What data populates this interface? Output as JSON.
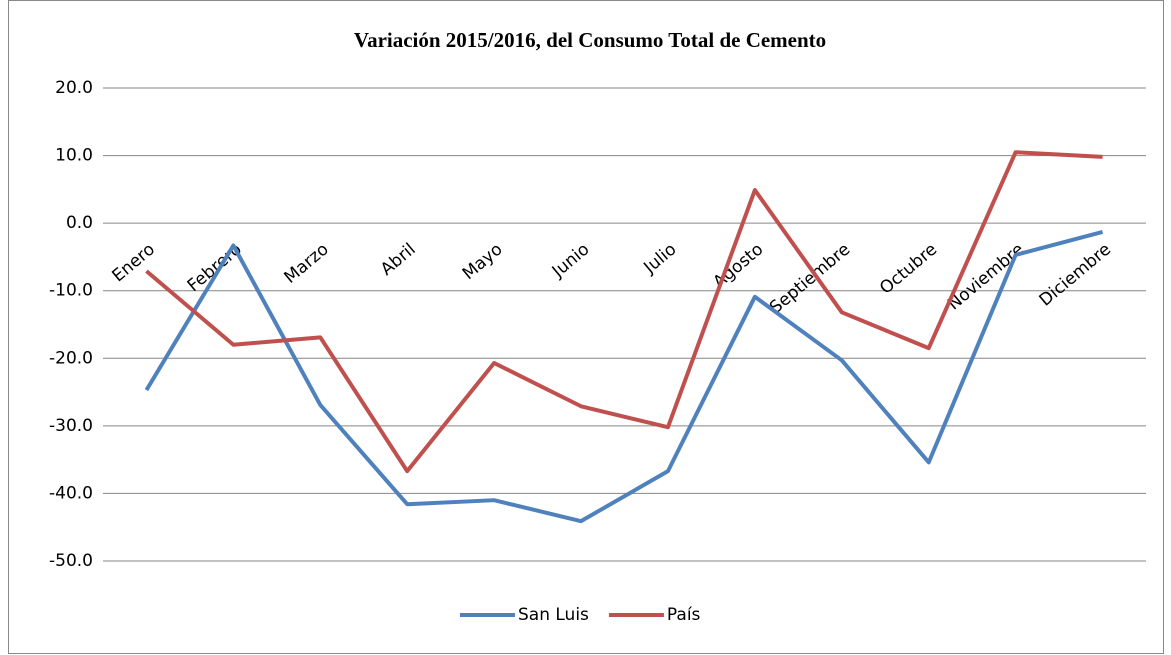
{
  "chart_data": {
    "type": "line",
    "title": "Variación 2015/2016, del Consumo Total de Cemento",
    "categories": [
      "Enero",
      "Febrero",
      "Marzo",
      "Abril",
      "Mayo",
      "Junio",
      "Julio",
      "Agosto",
      "Septiembre",
      "Octubre",
      "Noviembre",
      "Diciembre"
    ],
    "series": [
      {
        "name": "San Luis",
        "color": "#4f81bd",
        "values": [
          -24.7,
          -3.3,
          -26.9,
          -41.6,
          -41.0,
          -44.1,
          -36.7,
          -10.9,
          -20.3,
          -35.4,
          -4.7,
          -1.3
        ]
      },
      {
        "name": "País",
        "color": "#c0504d",
        "values": [
          -7.1,
          -18.0,
          -16.9,
          -36.7,
          -20.7,
          -27.1,
          -30.2,
          4.9,
          -13.2,
          -18.5,
          10.5,
          9.8
        ]
      }
    ],
    "ylim": [
      -50,
      20
    ],
    "yticks": [
      {
        "value": -50,
        "label": "-50.0"
      },
      {
        "value": -40,
        "label": "-40.0"
      },
      {
        "value": -30,
        "label": "-30.0"
      },
      {
        "value": -20,
        "label": "-20.0"
      },
      {
        "value": -10,
        "label": "-10.0"
      },
      {
        "value": 0,
        "label": "0.0"
      },
      {
        "value": 10,
        "label": "10.0"
      },
      {
        "value": 20,
        "label": "20.0"
      }
    ],
    "grid": true,
    "legend": "bottom"
  }
}
